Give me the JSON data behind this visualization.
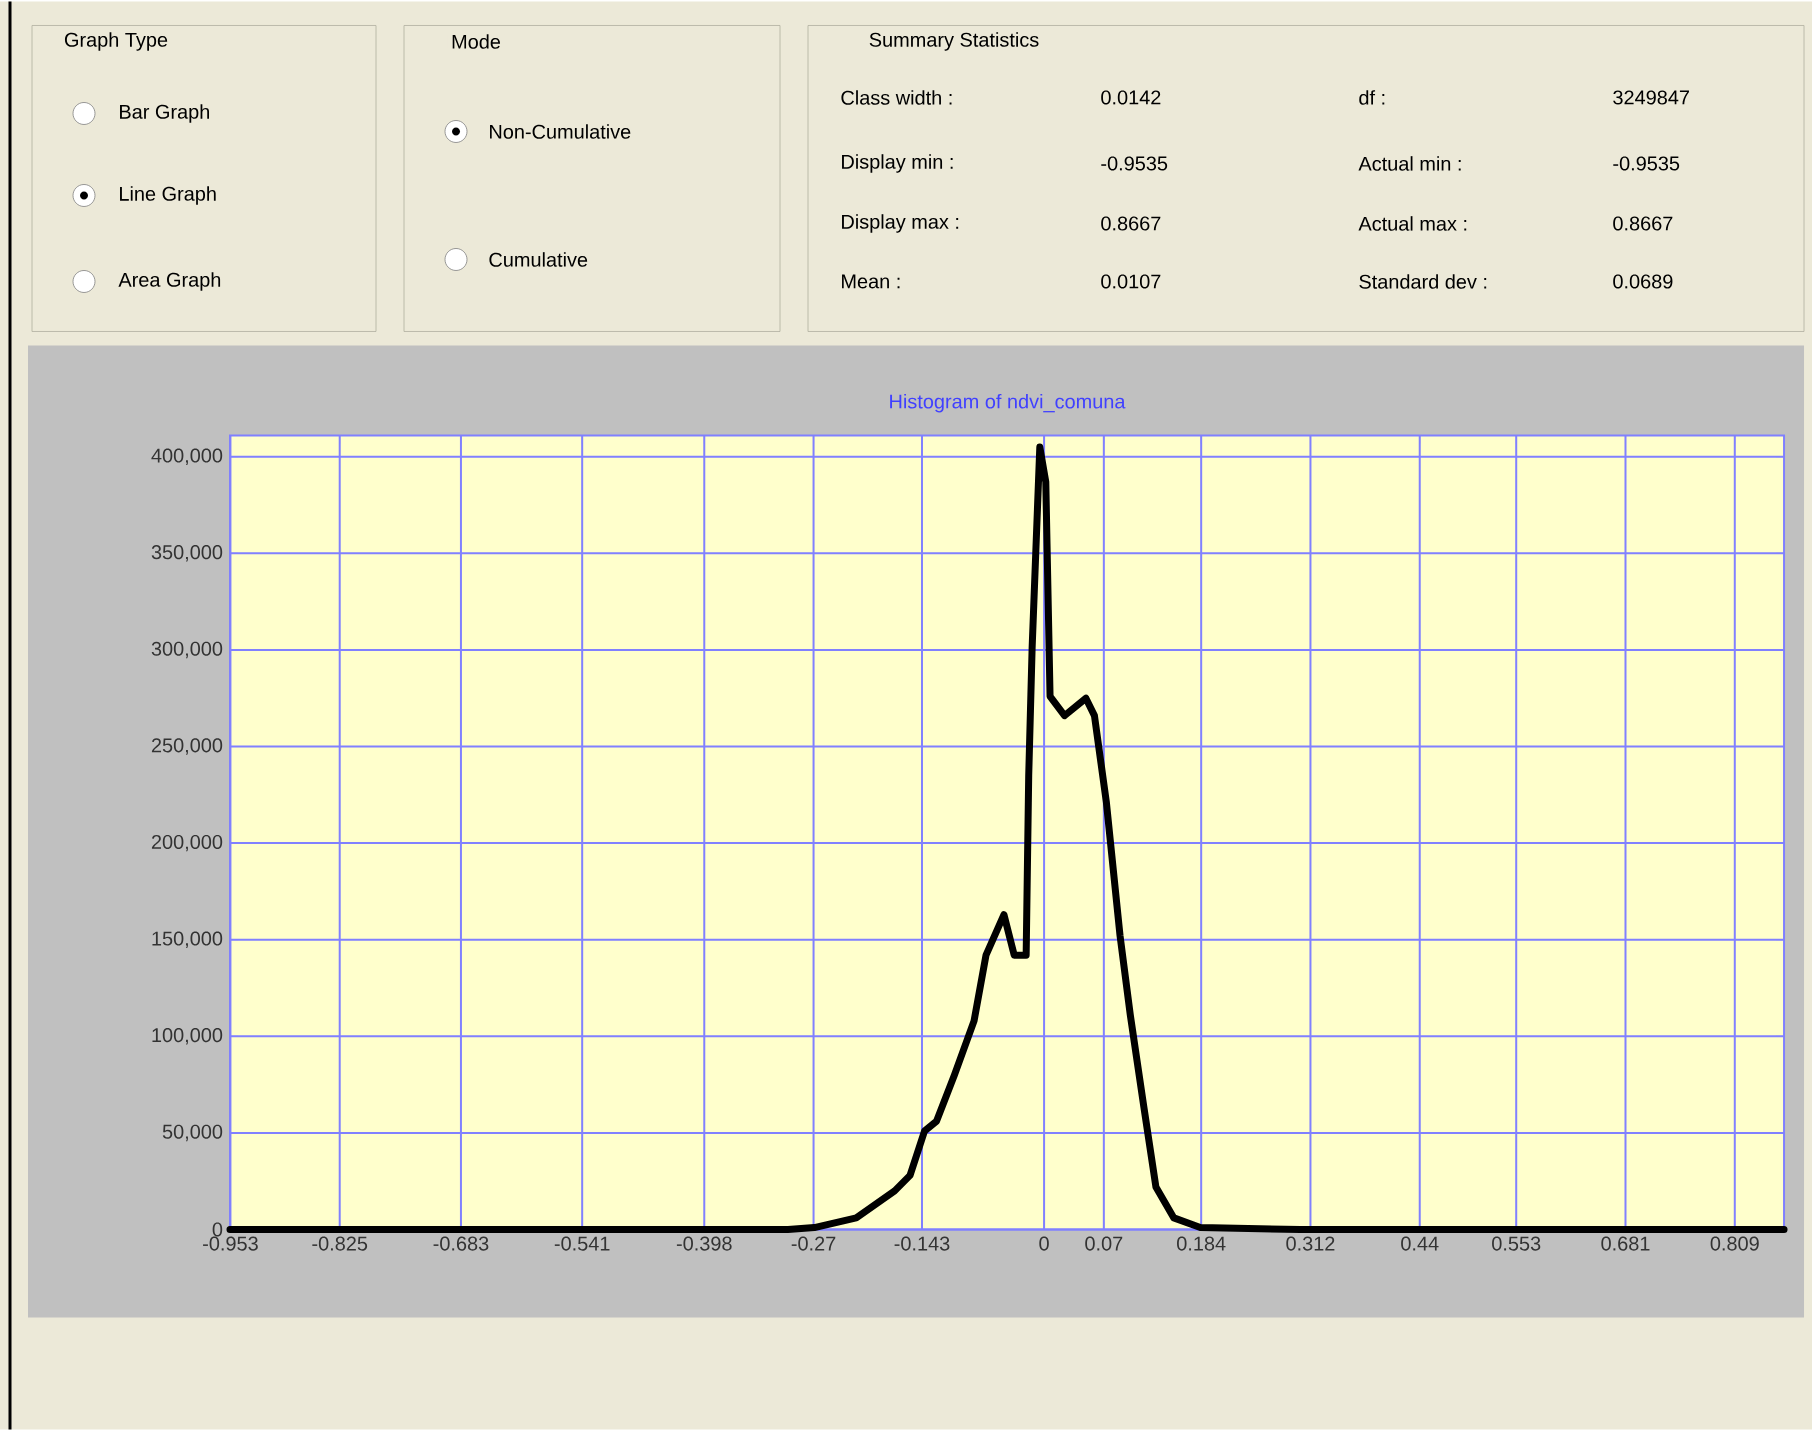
{
  "chart_data": {
    "type": "line",
    "title": "Histogram of ndvi_comuna",
    "x": [
      -0.9535,
      -0.6,
      -0.3,
      -0.269,
      -0.22,
      -0.175,
      -0.157,
      -0.14,
      -0.126,
      -0.105,
      -0.082,
      -0.068,
      -0.047,
      -0.035,
      -0.021,
      -0.018,
      -0.014,
      -0.005,
      0.002,
      0.007,
      0.024,
      0.049,
      0.059,
      0.073,
      0.089,
      0.101,
      0.117,
      0.131,
      0.152,
      0.183,
      0.3,
      0.6,
      0.8667
    ],
    "series": [
      {
        "color": "#000000",
        "values": [
          0,
          0,
          0,
          1000,
          6000,
          20000,
          28000,
          51000,
          56000,
          80000,
          108000,
          142000,
          163000,
          142000,
          142000,
          235000,
          301000,
          405000,
          387000,
          276000,
          266000,
          275000,
          266000,
          221000,
          152000,
          111000,
          63000,
          22000,
          6000,
          1000,
          0,
          0,
          0
        ]
      }
    ],
    "xlim": [
      -0.9535,
      0.8667
    ],
    "ylim": [
      0,
      411000
    ],
    "xticks": [
      -0.953,
      -0.825,
      -0.683,
      -0.541,
      -0.398,
      -0.27,
      -0.143,
      0,
      0.07,
      0.184,
      0.312,
      0.44,
      0.553,
      0.681,
      0.809
    ],
    "yticks": [
      0,
      {
        "value": 50000,
        "label": "50,000"
      },
      {
        "value": 100000,
        "label": "100,000"
      },
      {
        "value": 150000,
        "label": "150,000"
      },
      {
        "value": 200000,
        "label": "200,000"
      },
      {
        "value": 250000,
        "label": "250,000"
      },
      {
        "value": 300000,
        "label": "300,000"
      },
      {
        "value": 350000,
        "label": "350,000"
      },
      {
        "value": 400000,
        "label": "400,000"
      }
    ],
    "grid": true,
    "marker": "none",
    "line_style": "solid",
    "annotations": [
      "Graph Type",
      "Bar Graph",
      "Line Graph",
      "Area Graph",
      "Mode",
      "Non-Cumulative",
      "Cumulative",
      "Summary Statistics",
      "Class width :",
      "0.0142",
      "df :",
      "3249847",
      "Display min :",
      "-0.9535",
      "Actual min :",
      "-0.9535",
      "Display max :",
      "0.8667",
      "Actual max :",
      "0.8667",
      "Mean :",
      "0.0107",
      "Standard dev :",
      "0.0689"
    ]
  }
}
